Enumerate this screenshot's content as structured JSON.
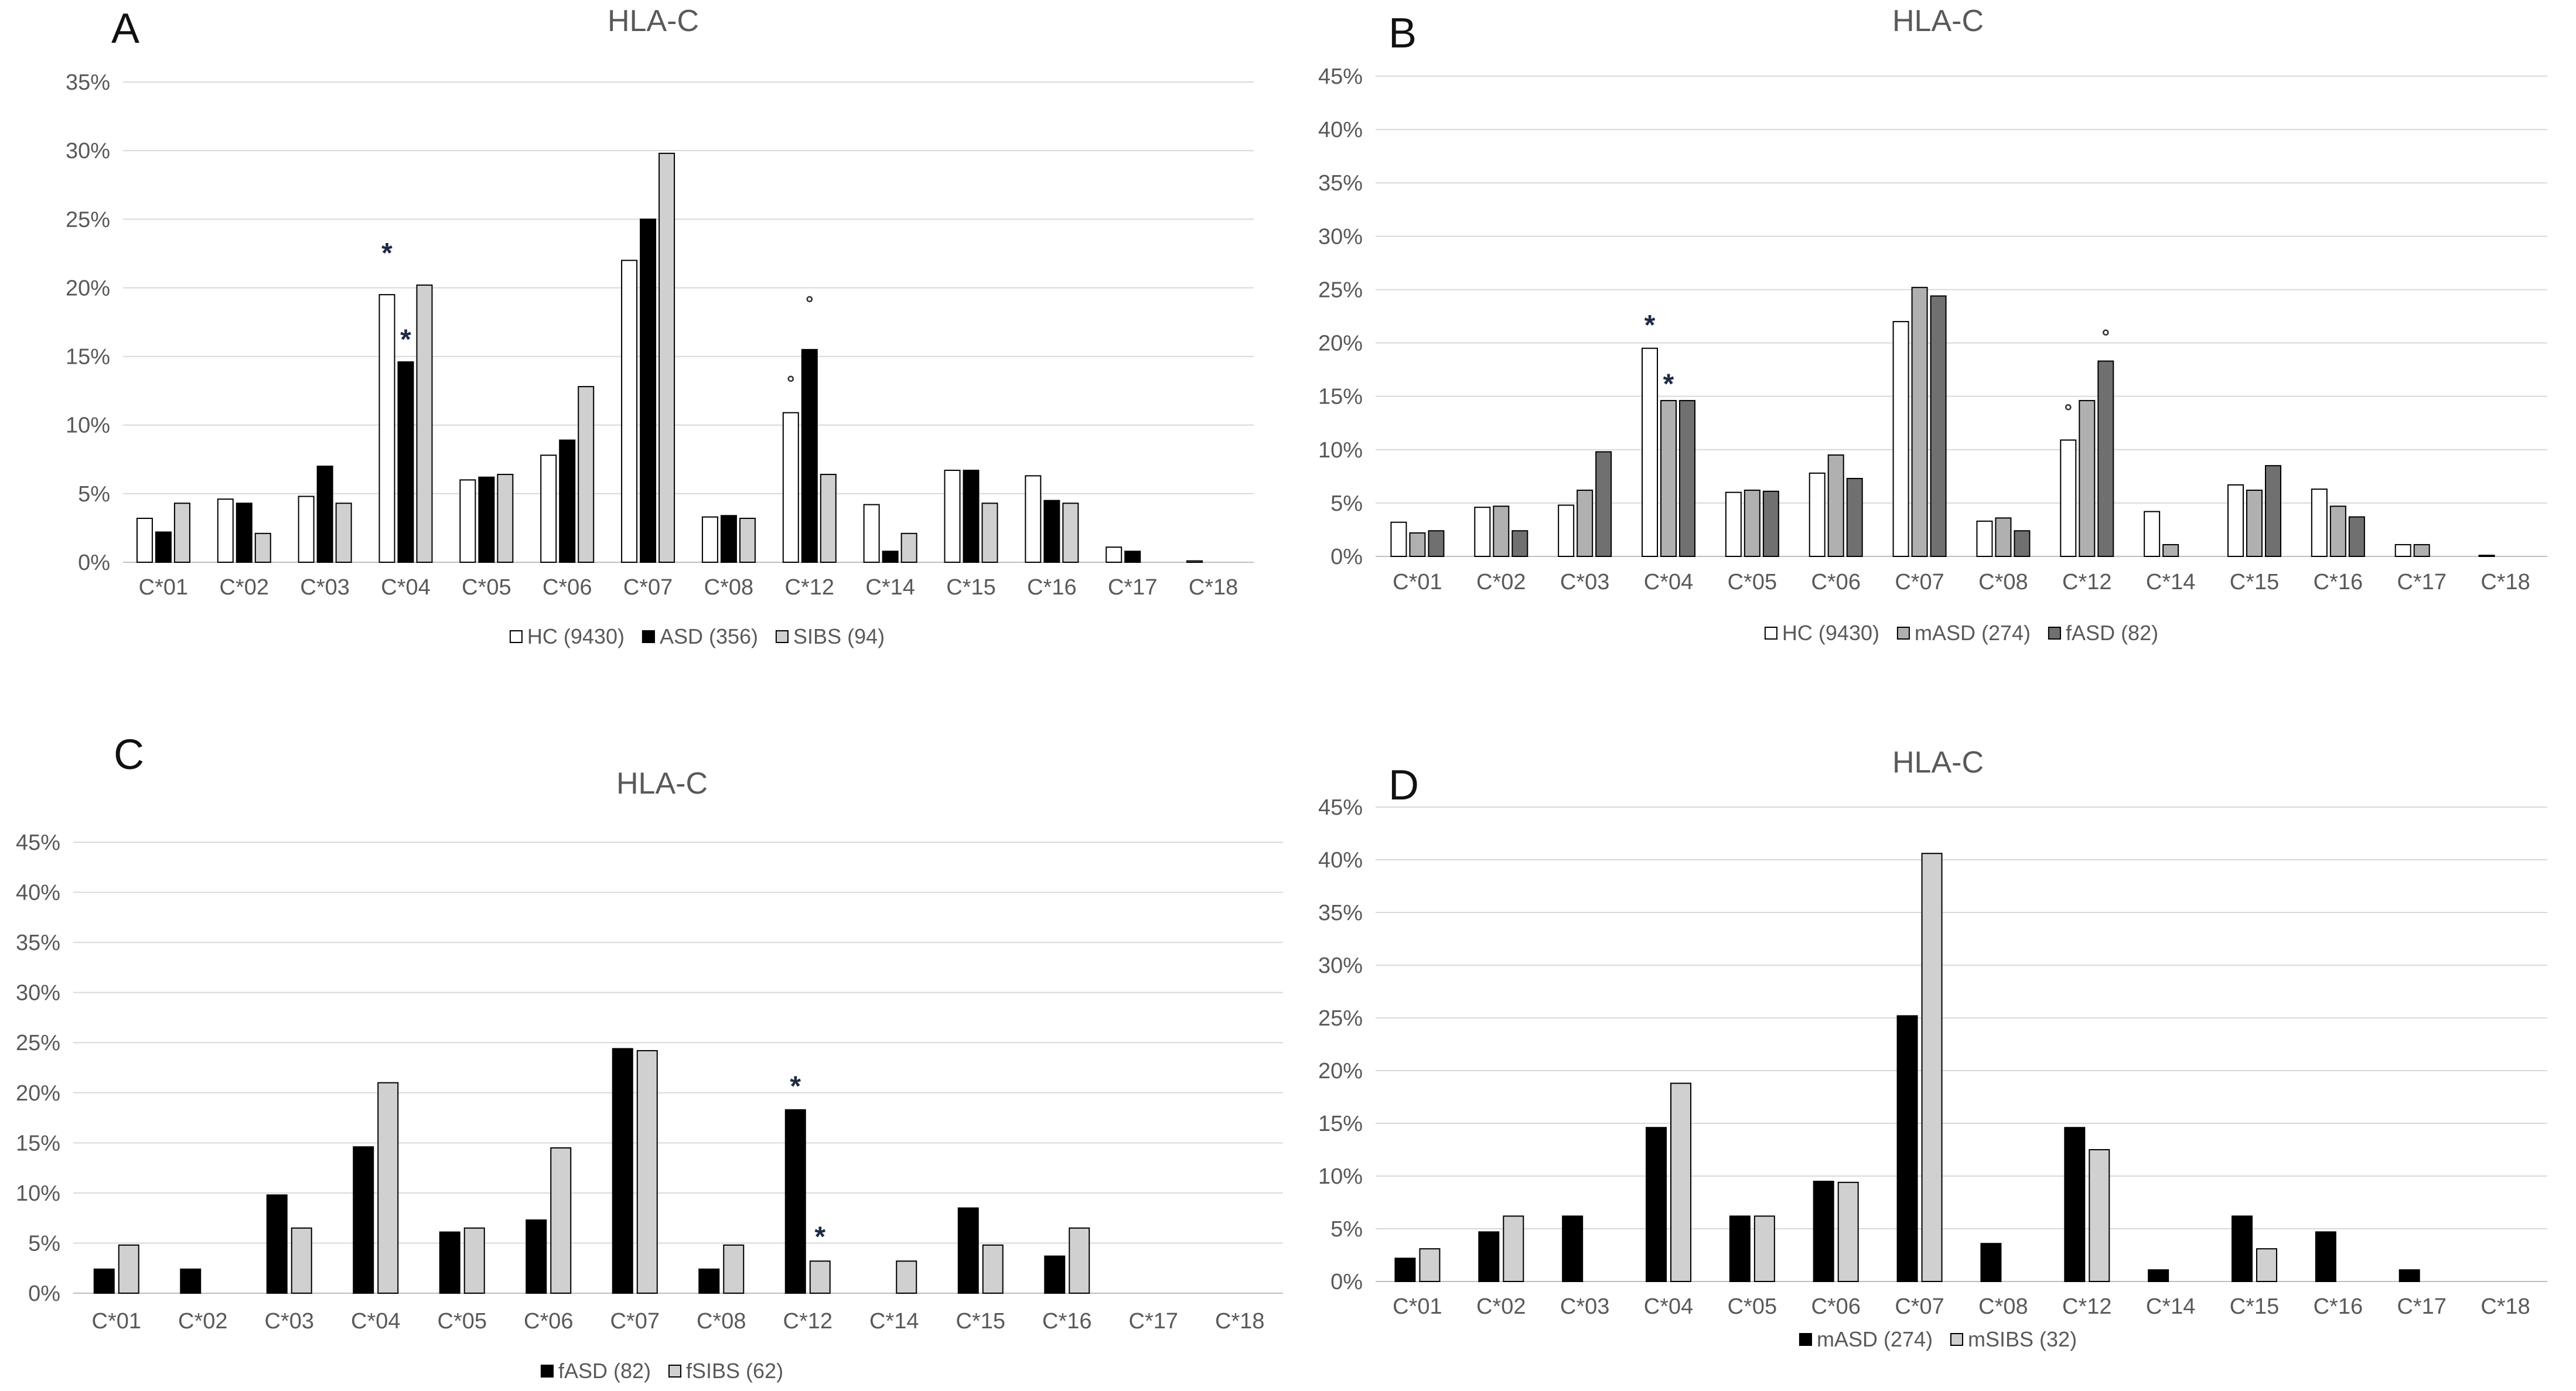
{
  "chart_data": [
    {
      "panel": "A",
      "type": "bar",
      "title": "HLA-C",
      "xlabel": "",
      "ylabel": "",
      "ylim": [
        0,
        35
      ],
      "ytick_step": 5,
      "ytick_labels": [
        "0%",
        "5%",
        "10%",
        "15%",
        "20%",
        "25%",
        "30%",
        "35%"
      ],
      "grid": true,
      "legend": "bottom",
      "categories": [
        "C*01",
        "C*02",
        "C*03",
        "C*04",
        "C*05",
        "C*06",
        "C*07",
        "C*08",
        "C*12",
        "C*14",
        "C*15",
        "C*16",
        "C*17",
        "C*18"
      ],
      "series": [
        {
          "name": "HC (9430)",
          "color": "#ffffff",
          "values": [
            3.2,
            4.6,
            4.8,
            19.5,
            6.0,
            7.8,
            22.0,
            3.3,
            10.9,
            4.2,
            6.7,
            6.3,
            1.1,
            0.1
          ]
        },
        {
          "name": "ASD (356)",
          "color": "#000000",
          "values": [
            2.2,
            4.3,
            7.0,
            14.6,
            6.2,
            8.9,
            25.0,
            3.4,
            15.5,
            0.8,
            6.7,
            4.5,
            0.8,
            0.0
          ]
        },
        {
          "name": "SIBS (94)",
          "color": "#d0d0d0",
          "values": [
            4.3,
            2.1,
            4.3,
            20.2,
            6.4,
            12.8,
            29.8,
            3.2,
            6.4,
            2.1,
            4.3,
            4.3,
            0.0,
            0.0
          ]
        }
      ],
      "annotations": [
        {
          "text": "*",
          "category": "C*04",
          "series": 0,
          "value": 22.8
        },
        {
          "text": "*",
          "category": "C*04",
          "series": 1,
          "value": 16.5
        },
        {
          "text": "°",
          "category": "C*12",
          "series": 0,
          "value": 13.0
        },
        {
          "text": "°",
          "category": "C*12",
          "series": 1,
          "value": 18.8
        }
      ]
    },
    {
      "panel": "B",
      "type": "bar",
      "title": "HLA-C",
      "xlabel": "",
      "ylabel": "",
      "ylim": [
        0,
        45
      ],
      "ytick_step": 5,
      "ytick_labels": [
        "0%",
        "5%",
        "10%",
        "15%",
        "20%",
        "25%",
        "30%",
        "35%",
        "40%",
        "45%"
      ],
      "grid": true,
      "legend": "bottom",
      "categories": [
        "C*01",
        "C*02",
        "C*03",
        "C*04",
        "C*05",
        "C*06",
        "C*07",
        "C*08",
        "C*12",
        "C*14",
        "C*15",
        "C*16",
        "C*17",
        "C*18"
      ],
      "series": [
        {
          "name": "HC (9430)",
          "color": "#ffffff",
          "values": [
            3.2,
            4.6,
            4.8,
            19.5,
            6.0,
            7.8,
            22.0,
            3.3,
            10.9,
            4.2,
            6.7,
            6.3,
            1.1,
            0.1
          ]
        },
        {
          "name": "mASD (274)",
          "color": "#b0b0b0",
          "values": [
            2.2,
            4.7,
            6.2,
            14.6,
            6.2,
            9.5,
            25.2,
            3.6,
            14.6,
            1.1,
            6.2,
            4.7,
            1.1,
            0.0
          ]
        },
        {
          "name": "fASD (82)",
          "color": "#707070",
          "values": [
            2.4,
            2.4,
            9.8,
            14.6,
            6.1,
            7.3,
            24.4,
            2.4,
            18.3,
            0.0,
            8.5,
            3.7,
            0.0,
            0.0
          ]
        }
      ],
      "annotations": [
        {
          "text": "*",
          "category": "C*04",
          "series": 0,
          "value": 22.0
        },
        {
          "text": "*",
          "category": "C*04",
          "series": 1,
          "value": 16.5
        },
        {
          "text": "°",
          "category": "C*12",
          "series": 0,
          "value": 13.5
        },
        {
          "text": "°",
          "category": "C*12",
          "series": 2,
          "value": 20.5
        }
      ]
    },
    {
      "panel": "C",
      "type": "bar",
      "title": "HLA-C",
      "xlabel": "",
      "ylabel": "",
      "ylim": [
        0,
        45
      ],
      "ytick_step": 5,
      "ytick_labels": [
        "0%",
        "5%",
        "10%",
        "15%",
        "20%",
        "25%",
        "30%",
        "35%",
        "40%",
        "45%"
      ],
      "grid": true,
      "legend": "bottom",
      "categories": [
        "C*01",
        "C*02",
        "C*03",
        "C*04",
        "C*05",
        "C*06",
        "C*07",
        "C*08",
        "C*12",
        "C*14",
        "C*15",
        "C*16",
        "C*17",
        "C*18"
      ],
      "series": [
        {
          "name": "fASD (82)",
          "color": "#000000",
          "values": [
            2.4,
            2.4,
            9.8,
            14.6,
            6.1,
            7.3,
            24.4,
            2.4,
            18.3,
            0.0,
            8.5,
            3.7,
            0.0,
            0.0
          ]
        },
        {
          "name": "fSIBS (62)",
          "color": "#d0d0d0",
          "values": [
            4.8,
            0.0,
            6.5,
            21.0,
            6.5,
            14.5,
            24.2,
            4.8,
            3.2,
            3.2,
            4.8,
            6.5,
            0.0,
            0.0
          ]
        }
      ],
      "annotations": [
        {
          "text": "*",
          "category": "C*12",
          "series": 0,
          "value": 21.0
        },
        {
          "text": "*",
          "category": "C*12",
          "series": 1,
          "value": 6.0
        }
      ]
    },
    {
      "panel": "D",
      "type": "bar",
      "title": "HLA-C",
      "xlabel": "",
      "ylabel": "",
      "ylim": [
        0,
        45
      ],
      "ytick_step": 5,
      "ytick_labels": [
        "0%",
        "5%",
        "10%",
        "15%",
        "20%",
        "25%",
        "30%",
        "35%",
        "40%",
        "45%"
      ],
      "grid": true,
      "legend": "bottom",
      "categories": [
        "C*01",
        "C*02",
        "C*03",
        "C*04",
        "C*05",
        "C*06",
        "C*07",
        "C*08",
        "C*12",
        "C*14",
        "C*15",
        "C*16",
        "C*17",
        "C*18"
      ],
      "series": [
        {
          "name": "mASD (274)",
          "color": "#000000",
          "values": [
            2.2,
            4.7,
            6.2,
            14.6,
            6.2,
            9.5,
            25.2,
            3.6,
            14.6,
            1.1,
            6.2,
            4.7,
            1.1,
            0.0
          ]
        },
        {
          "name": "mSIBS (32)",
          "color": "#d0d0d0",
          "values": [
            3.1,
            6.2,
            0.0,
            18.8,
            6.2,
            9.4,
            40.6,
            0.0,
            12.5,
            0.0,
            3.1,
            0.0,
            0.0,
            0.0
          ]
        }
      ],
      "annotations": []
    }
  ]
}
